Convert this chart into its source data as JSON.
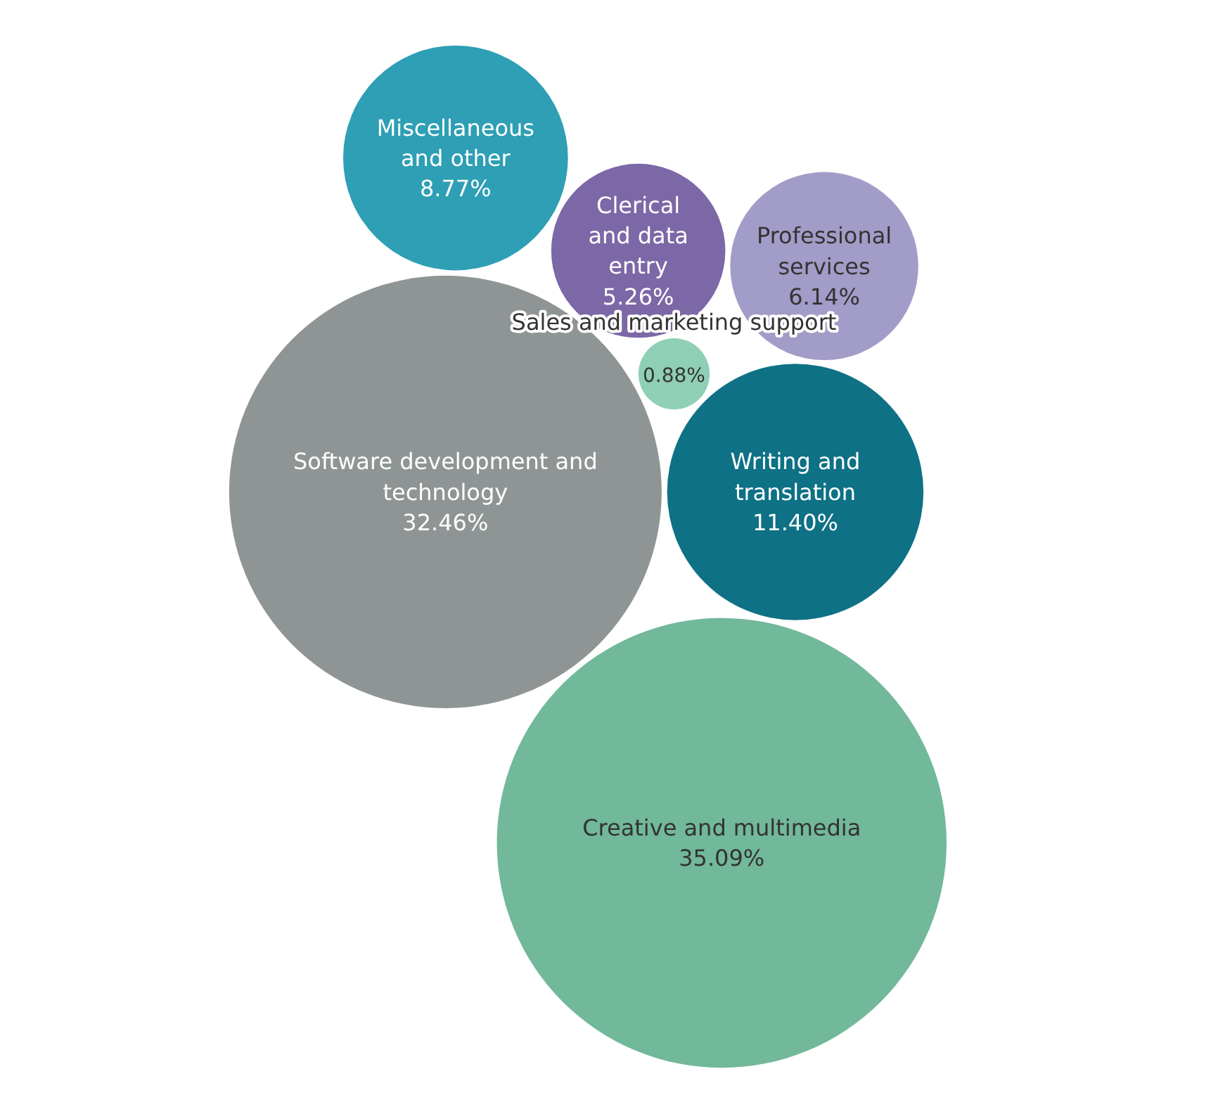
{
  "chart_data": {
    "type": "other",
    "categories": [
      "Software development and technology",
      "Writing and translation",
      "Creative and multimedia",
      "Sales and marketing support",
      "Clerical and data entry",
      "Professional services",
      "Miscellaneous and other"
    ],
    "values": [
      32.46,
      11.4,
      35.09,
      0.88,
      5.26,
      6.14,
      8.77
    ],
    "value_labels": [
      "32.46%",
      "11.40%",
      "35.09%",
      "0.88%",
      "5.26%",
      "6.14%",
      "8.77%"
    ],
    "colors": [
      "#8f9595",
      "#0e7185",
      "#72b89a",
      "#8fcfb5",
      "#7c68a6",
      "#a29cc8",
      "#2e9fb4"
    ]
  }
}
